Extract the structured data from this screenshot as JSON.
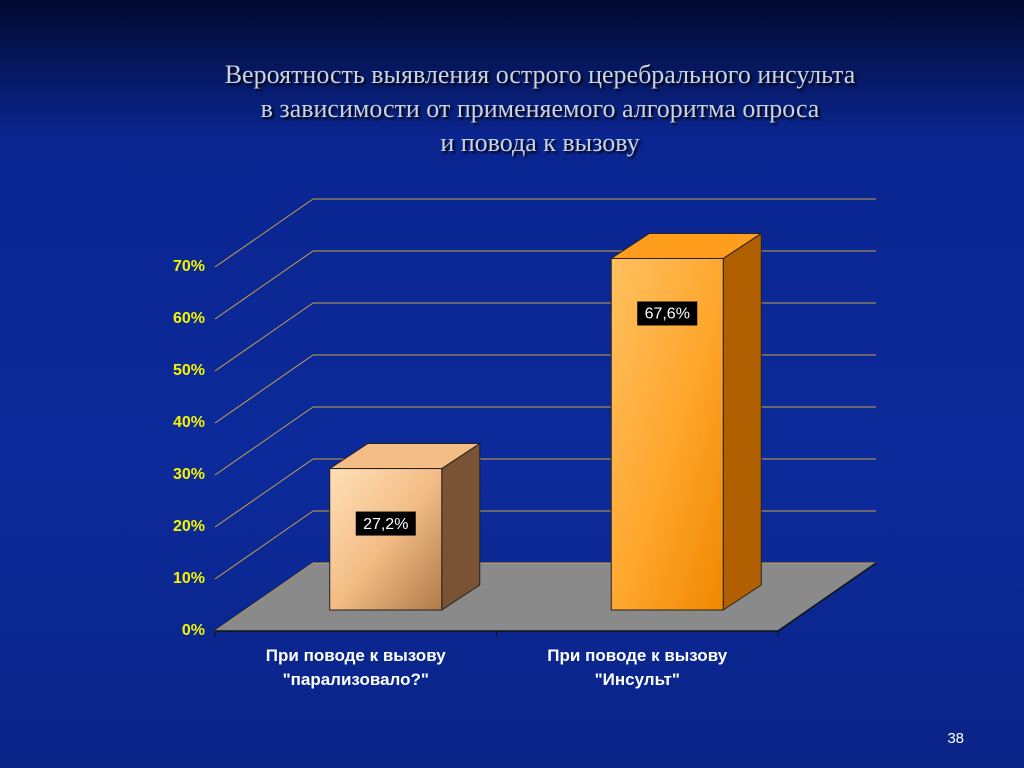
{
  "chart_data": {
    "type": "bar3d",
    "title": "Вероятность выявления острого церебрального инсульта\nв зависимости от применяемого алгоритма опроса\nи повода к вызову",
    "categories": [
      "При поводе к вызову\n\"парализовало?\"",
      "При поводе к вызову\n\"Инсульт\""
    ],
    "values": [
      27.2,
      67.6
    ],
    "value_labels": [
      "27,2%",
      "67,6%"
    ],
    "colors": [
      "#f3bd85",
      "#ff9d1c"
    ],
    "ylim": [
      0,
      70
    ],
    "yticks": [
      {
        "value": 0,
        "label": "0%"
      },
      {
        "value": 10,
        "label": "10%"
      },
      {
        "value": 20,
        "label": "20%"
      },
      {
        "value": 30,
        "label": "30%"
      },
      {
        "value": 40,
        "label": "40%"
      },
      {
        "value": 50,
        "label": "50%"
      },
      {
        "value": 60,
        "label": "60%"
      },
      {
        "value": 70,
        "label": "70%"
      }
    ],
    "grid": true
  },
  "page_number": "38"
}
